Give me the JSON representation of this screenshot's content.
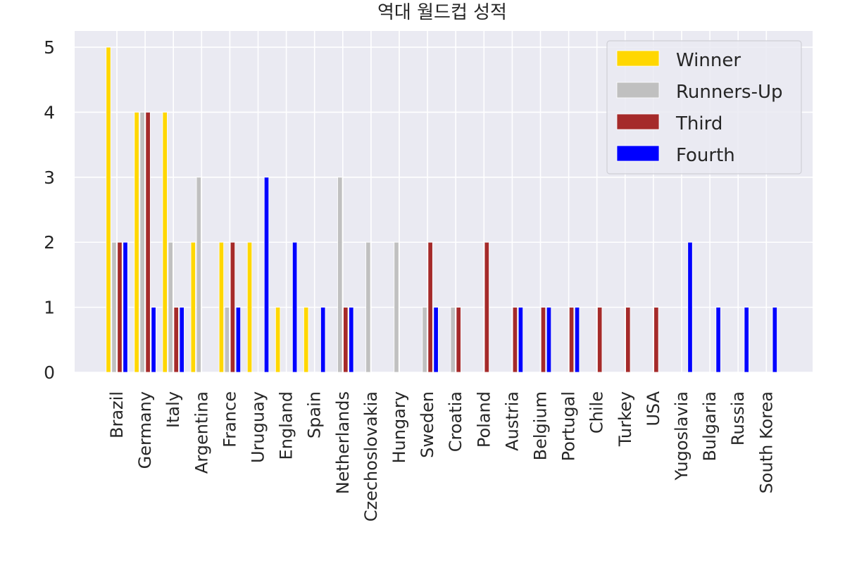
{
  "chart_data": {
    "type": "bar",
    "title": "역대 월드컵 성적",
    "xlabel": "",
    "ylabel": "",
    "ylim": [
      0,
      5.25
    ],
    "yticks": [
      "0",
      "1",
      "2",
      "3",
      "4",
      "5"
    ],
    "grid": true,
    "legend_position": "top-right",
    "categories": [
      "Brazil",
      "Germany",
      "Italy",
      "Argentina",
      "France",
      "Uruguay",
      "England",
      "Spain",
      "Netherlands",
      "Czechoslovakia",
      "Hungary",
      "Sweden",
      "Croatia",
      "Poland",
      "Austria",
      "Belgium",
      "Portugal",
      "Chile",
      "Turkey",
      "USA",
      "Yugoslavia",
      "Bulgaria",
      "Russia",
      "South Korea"
    ],
    "series": [
      {
        "name": "Winner",
        "color": "#FFD700",
        "values": [
          5,
          4,
          4,
          2,
          2,
          2,
          1,
          1,
          0,
          0,
          0,
          0,
          0,
          0,
          0,
          0,
          0,
          0,
          0,
          0,
          0,
          0,
          0,
          0
        ]
      },
      {
        "name": "Runners-Up",
        "color": "#C0C0C0",
        "values": [
          2,
          4,
          2,
          3,
          1,
          0,
          0,
          0,
          3,
          2,
          2,
          1,
          1,
          0,
          0,
          0,
          0,
          0,
          0,
          0,
          0,
          0,
          0,
          0
        ]
      },
      {
        "name": "Third",
        "color": "#A52A2A",
        "values": [
          2,
          4,
          1,
          0,
          2,
          0,
          0,
          0,
          1,
          0,
          0,
          2,
          1,
          2,
          1,
          1,
          1,
          1,
          1,
          1,
          0,
          0,
          0,
          0
        ]
      },
      {
        "name": "Fourth",
        "color": "#0000FF",
        "values": [
          2,
          1,
          1,
          0,
          1,
          3,
          2,
          1,
          1,
          0,
          0,
          1,
          0,
          0,
          1,
          1,
          1,
          0,
          0,
          0,
          2,
          1,
          1,
          1
        ]
      }
    ]
  }
}
